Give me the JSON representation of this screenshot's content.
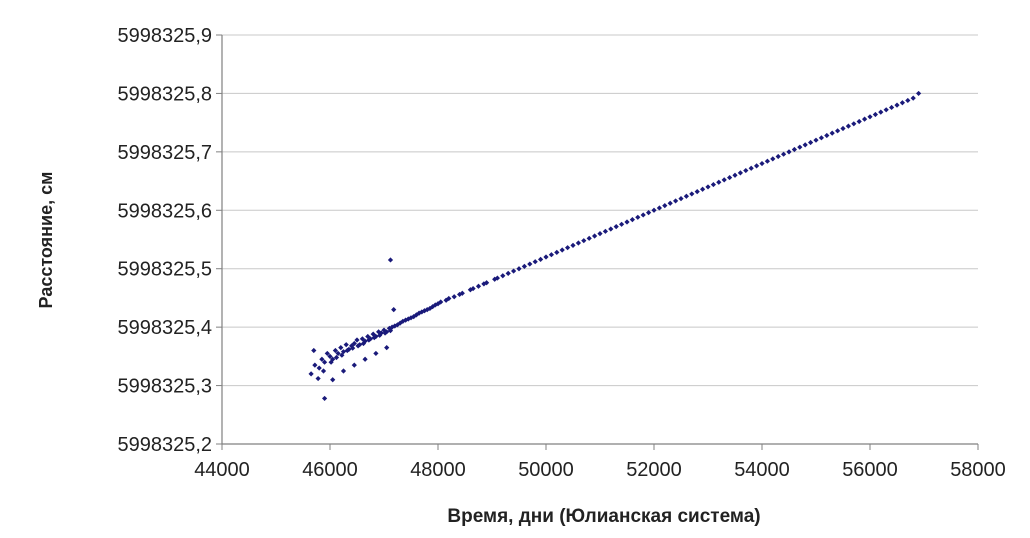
{
  "chart_data": {
    "type": "scatter",
    "title": "",
    "xlabel": "Время, дни (Юлианская система)",
    "ylabel": "Расстояние, см",
    "xlim": [
      44000,
      58000
    ],
    "ylim": [
      5998325.2,
      5998325.9
    ],
    "x_ticks": [
      44000,
      46000,
      48000,
      50000,
      52000,
      54000,
      56000,
      58000
    ],
    "x_tick_labels": [
      "44000",
      "46000",
      "48000",
      "50000",
      "52000",
      "54000",
      "56000",
      "58000"
    ],
    "y_ticks": [
      5998325.2,
      5998325.3,
      5998325.4,
      5998325.5,
      5998325.6,
      5998325.7,
      5998325.8,
      5998325.9
    ],
    "y_tick_labels": [
      "5998325,2",
      "5998325,3",
      "5998325,4",
      "5998325,5",
      "5998325,6",
      "5998325,7",
      "5998325,8",
      "5998325,9"
    ],
    "grid": "horizontal",
    "legend": "none",
    "marker_color": "#1a1a7a",
    "series": [
      {
        "x": [
          45650,
          45720,
          45800,
          45850,
          45900,
          45950,
          46000,
          46050,
          46100,
          46150,
          46200,
          46250,
          46300,
          46350,
          46400,
          46450,
          46500,
          46550,
          46600,
          46650,
          46700,
          46750,
          46800,
          46850,
          46900,
          46950,
          47000,
          47050,
          47100,
          47150,
          47200,
          47300,
          47400,
          47500,
          47600,
          47700,
          47800,
          47900,
          48000,
          48150,
          48300,
          48450,
          48600,
          48750,
          48900,
          49050,
          49200,
          49400,
          49600,
          49800,
          50000,
          50200,
          50400,
          50600,
          50800,
          51000,
          51200,
          51400,
          51600,
          51800,
          52000,
          52200,
          52400,
          52600,
          52800,
          53000,
          53200,
          53400,
          53600,
          53800,
          54000,
          54200,
          54400,
          54600,
          54800,
          55000,
          55200,
          55400,
          55600,
          55800,
          56000,
          56200,
          56400,
          56600,
          56800,
          56900,
          45780,
          45880,
          46020,
          46120,
          46220,
          46320,
          46420,
          46520,
          46620,
          46720,
          46820,
          46920,
          47020,
          47120,
          47250,
          47350,
          47450,
          47550,
          47650,
          47750,
          47850,
          47950,
          48050,
          48200,
          48400,
          48650,
          48850,
          49100,
          49300,
          49500,
          49700,
          49900,
          50100,
          50300,
          50500,
          50700,
          50900,
          51100,
          51300,
          51500,
          51700,
          51900,
          52100,
          52300,
          52500,
          52700,
          52900,
          53100,
          53300,
          53500,
          53700,
          53900,
          54100,
          54300,
          54500,
          54700,
          54900,
          55100,
          55300,
          55500,
          55700,
          55900,
          56100,
          56300,
          56500,
          56700,
          45900,
          47120,
          47180,
          45700,
          46050,
          46250,
          46450,
          46650,
          46850,
          47050
        ],
        "y": [
          5998325.32,
          5998325.335,
          5998325.33,
          5998325.345,
          5998325.34,
          5998325.355,
          5998325.35,
          5998325.345,
          5998325.36,
          5998325.355,
          5998325.365,
          5998325.358,
          5998325.37,
          5998325.362,
          5998325.368,
          5998325.372,
          5998325.378,
          5998325.37,
          5998325.38,
          5998325.376,
          5998325.384,
          5998325.38,
          5998325.388,
          5998325.384,
          5998325.392,
          5998325.39,
          5998325.395,
          5998325.392,
          5998325.398,
          5998325.4,
          5998325.402,
          5998325.407,
          5998325.412,
          5998325.416,
          5998325.421,
          5998325.426,
          5998325.43,
          5998325.435,
          5998325.44,
          5998325.446,
          5998325.452,
          5998325.458,
          5998325.464,
          5998325.47,
          5998325.476,
          5998325.482,
          5998325.488,
          5998325.496,
          5998325.504,
          5998325.512,
          5998325.52,
          5998325.528,
          5998325.536,
          5998325.544,
          5998325.552,
          5998325.56,
          5998325.568,
          5998325.576,
          5998325.584,
          5998325.592,
          5998325.6,
          5998325.608,
          5998325.616,
          5998325.624,
          5998325.632,
          5998325.64,
          5998325.648,
          5998325.656,
          5998325.664,
          5998325.672,
          5998325.68,
          5998325.688,
          5998325.696,
          5998325.704,
          5998325.712,
          5998325.72,
          5998325.728,
          5998325.736,
          5998325.744,
          5998325.752,
          5998325.76,
          5998325.768,
          5998325.776,
          5998325.784,
          5998325.792,
          5998325.8,
          5998325.312,
          5998325.325,
          5998325.34,
          5998325.348,
          5998325.352,
          5998325.36,
          5998325.364,
          5998325.368,
          5998325.372,
          5998325.378,
          5998325.382,
          5998325.386,
          5998325.39,
          5998325.394,
          5998325.404,
          5998325.41,
          5998325.414,
          5998325.418,
          5998325.424,
          5998325.428,
          5998325.432,
          5998325.438,
          5998325.443,
          5998325.449,
          5998325.456,
          5998325.466,
          5998325.474,
          5998325.484,
          5998325.492,
          5998325.5,
          5998325.508,
          5998325.516,
          5998325.524,
          5998325.532,
          5998325.54,
          5998325.548,
          5998325.556,
          5998325.564,
          5998325.572,
          5998325.58,
          5998325.588,
          5998325.596,
          5998325.604,
          5998325.612,
          5998325.62,
          5998325.628,
          5998325.636,
          5998325.644,
          5998325.652,
          5998325.66,
          5998325.668,
          5998325.676,
          5998325.684,
          5998325.692,
          5998325.7,
          5998325.708,
          5998325.716,
          5998325.724,
          5998325.732,
          5998325.74,
          5998325.748,
          5998325.756,
          5998325.764,
          5998325.772,
          5998325.78,
          5998325.788,
          5998325.278,
          5998325.515,
          5998325.43,
          5998325.36,
          5998325.31,
          5998325.325,
          5998325.335,
          5998325.345,
          5998325.355,
          5998325.365
        ]
      }
    ]
  }
}
